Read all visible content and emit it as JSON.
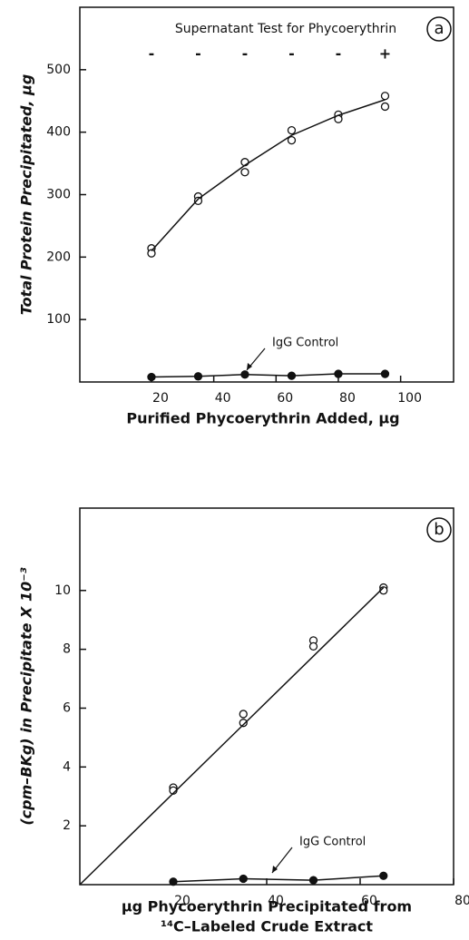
{
  "chart_data": [
    {
      "type": "scatter",
      "x_label": "Purified Phycoerythrin Added, μg",
      "y_label": "Total Protein Precipitated, μg",
      "panel_label": "a",
      "xlim": [
        -3,
        117
      ],
      "ylim": [
        0,
        600
      ],
      "xticks": [
        20,
        40,
        60,
        80,
        100
      ],
      "yticks": [
        100,
        200,
        300,
        400,
        500
      ],
      "supernatant": {
        "label": "Supernatant Test for Phycoerythrin",
        "x": [
          20,
          35,
          50,
          65,
          80,
          95
        ],
        "labels": [
          "-",
          "-",
          "-",
          "-",
          "-",
          "+"
        ]
      },
      "annotation": "IgG Control",
      "series": [
        {
          "marker": "open",
          "color": "#111111",
          "x": [
            20,
            20,
            35,
            35,
            50,
            50,
            65,
            65,
            80,
            80,
            95,
            95
          ],
          "values": [
            214,
            206,
            297,
            290,
            352,
            336,
            403,
            387,
            428,
            421,
            458,
            441
          ]
        },
        {
          "marker": "none",
          "line": true,
          "color": "#111111",
          "x": [
            20,
            35,
            50,
            65,
            80,
            95
          ],
          "values": [
            210,
            293,
            347,
            395,
            427,
            452
          ]
        },
        {
          "marker": "filled",
          "line": true,
          "color": "#111111",
          "x": [
            20,
            35,
            50,
            65,
            80,
            95
          ],
          "values": [
            8,
            9,
            12,
            10,
            13,
            13
          ]
        }
      ]
    },
    {
      "type": "scatter",
      "x_label": [
        "μg Phycoerythrin Precipitated from",
        "¹⁴C–Labeled Crude Extract"
      ],
      "y_label": "(cpm–BKg) in Precipitate X 10⁻³",
      "panel_label": "b",
      "xlim": [
        0,
        80
      ],
      "ylim": [
        0,
        12.8
      ],
      "xticks": [
        20,
        40,
        60,
        80
      ],
      "yticks": [
        2,
        4,
        6,
        8,
        10
      ],
      "annotation": "IgG Control",
      "series": [
        {
          "marker": "open",
          "color": "#111111",
          "x": [
            20,
            20,
            35,
            35,
            50,
            50,
            65,
            65
          ],
          "values": [
            3.3,
            3.2,
            5.8,
            5.5,
            8.3,
            8.1,
            10.1,
            10.0
          ]
        },
        {
          "marker": "none",
          "line": true,
          "color": "#111111",
          "x": [
            0,
            65
          ],
          "values": [
            0,
            10.1
          ]
        },
        {
          "marker": "filled",
          "line": true,
          "color": "#111111",
          "x": [
            20,
            35,
            50,
            65
          ],
          "values": [
            0.1,
            0.2,
            0.15,
            0.3
          ]
        }
      ]
    }
  ]
}
